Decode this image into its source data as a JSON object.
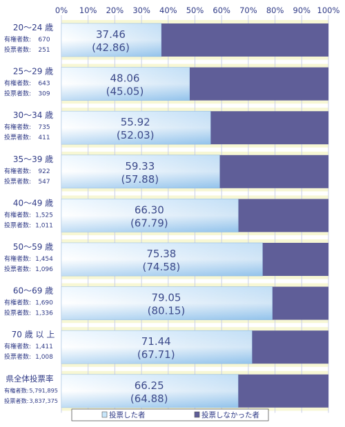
{
  "chart_data": {
    "type": "bar",
    "orientation": "horizontal",
    "stacked": true,
    "percent_scale": true,
    "x_ticks": [
      "0%",
      "10%",
      "20%",
      "30%",
      "40%",
      "50%",
      "60%",
      "70%",
      "80%",
      "90%",
      "100%"
    ],
    "xlim": [
      0,
      100
    ],
    "grid": true,
    "legend_position": "bottom",
    "title": "",
    "xlabel": "",
    "ylabel": "",
    "categories": [
      {
        "label": "20～24 歳",
        "registered_label": "有権者数:",
        "registered": "670",
        "voters_label": "投票者数:",
        "voters": "251",
        "rate": 37.46,
        "rate_text": "37.46",
        "prev_text": "(42.86)"
      },
      {
        "label": "25～29 歳",
        "registered_label": "有権者数:",
        "registered": "643",
        "voters_label": "投票者数:",
        "voters": "309",
        "rate": 48.06,
        "rate_text": "48.06",
        "prev_text": "(45.05)"
      },
      {
        "label": "30～34 歳",
        "registered_label": "有権者数:",
        "registered": "735",
        "voters_label": "投票者数:",
        "voters": "411",
        "rate": 55.92,
        "rate_text": "55.92",
        "prev_text": "(52.03)"
      },
      {
        "label": "35～39 歳",
        "registered_label": "有権者数:",
        "registered": "922",
        "voters_label": "投票者数:",
        "voters": "547",
        "rate": 59.33,
        "rate_text": "59.33",
        "prev_text": "(57.88)"
      },
      {
        "label": "40～49 歳",
        "registered_label": "有権者数:",
        "registered": "1,525",
        "voters_label": "投票者数:",
        "voters": "1,011",
        "rate": 66.3,
        "rate_text": "66.30",
        "prev_text": "(67.79)"
      },
      {
        "label": "50～59 歳",
        "registered_label": "有権者数:",
        "registered": "1,454",
        "voters_label": "投票者数:",
        "voters": "1,096",
        "rate": 75.38,
        "rate_text": "75.38",
        "prev_text": "(74.58)"
      },
      {
        "label": "60～69 歳",
        "registered_label": "有権者数:",
        "registered": "1,690",
        "voters_label": "投票者数:",
        "voters": "1,336",
        "rate": 79.05,
        "rate_text": "79.05",
        "prev_text": "(80.15)"
      },
      {
        "label": "70 歳 以 上",
        "registered_label": "有権者数:",
        "registered": "1,411",
        "voters_label": "投票者数:",
        "voters": "1,008",
        "rate": 71.44,
        "rate_text": "71.44",
        "prev_text": "(67.71)"
      },
      {
        "label": "県全体投票率",
        "registered_label": "有権者数:",
        "registered": "5,791,895",
        "voters_label": "投票者数:",
        "voters": "3,837,375",
        "rate": 66.25,
        "rate_text": "66.25",
        "prev_text": "(64.88)"
      }
    ],
    "series": [
      {
        "name": "投票した者",
        "color": "#c8e6fa"
      },
      {
        "name": "投票しなかった者",
        "color": "#5f5e98"
      }
    ],
    "colors": {
      "row_band": "#f7f7d4",
      "grid": "#c9cfe6",
      "label_text": "#2f3a86",
      "value_text": "#3c4a8a",
      "tick_text": "#2f3a86"
    }
  }
}
